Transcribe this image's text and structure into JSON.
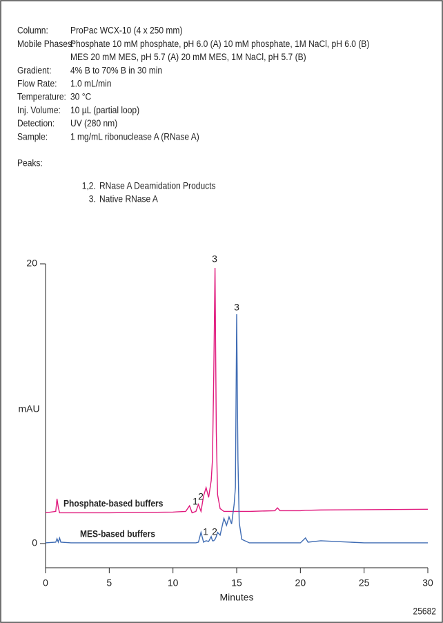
{
  "conditions": [
    {
      "label": "Column:",
      "lines": [
        "ProPac WCX-10 (4 x 250 mm)"
      ]
    },
    {
      "label": "Mobile Phases:",
      "lines": [
        "Phosphate 10 mM phosphate, pH 6.0 (A) 10 mM phosphate, 1M NaCl, pH 6.0 (B)",
        "MES 20 mM MES, pH 5.7 (A) 20 mM MES, 1M NaCl, pH 5.7 (B)"
      ]
    },
    {
      "label": "Gradient:",
      "lines": [
        "4% B to 70% B in 30 min"
      ]
    },
    {
      "label": "Flow Rate:",
      "lines": [
        "1.0 mL/min"
      ]
    },
    {
      "label": "Temperature:",
      "lines": [
        "30 °C"
      ]
    },
    {
      "label": "Inj. Volume:",
      "lines": [
        "10 µL (partial loop)"
      ]
    },
    {
      "label": "Detection:",
      "lines": [
        "UV (280 nm)"
      ]
    },
    {
      "label": "Sample:",
      "lines": [
        "1 mg/mL ribonuclease A (RNase A)"
      ]
    }
  ],
  "peaks_label": "Peaks:",
  "peaks": [
    {
      "number": "1,2.",
      "name": "RNase A Deamidation Products"
    },
    {
      "number": "3.",
      "name": "Native RNase A"
    }
  ],
  "figure_number": "25682",
  "chart_data": {
    "type": "line",
    "x_label": "Minutes",
    "y_label": "mAU",
    "xlim": [
      0,
      30
    ],
    "ylim": [
      -1.73,
      20
    ],
    "xticks": [
      0,
      5,
      10,
      15,
      20,
      25,
      30
    ],
    "yticks": [
      0,
      20
    ],
    "x": [
      0,
      0.8,
      0.9,
      1.0,
      1.1,
      1.2,
      2,
      5,
      10,
      11,
      11.3,
      11.5,
      11.8,
      12.0,
      12.2,
      12.4,
      12.6,
      12.8,
      13.0,
      13.1,
      13.2,
      13.3,
      13.4,
      13.5,
      13.7,
      14.0,
      14.2,
      14.4,
      14.6,
      14.8,
      14.9,
      15.0,
      15.1,
      15.2,
      15.4,
      16,
      18,
      18.2,
      18.4,
      20,
      20.4,
      20.6,
      21.6,
      25,
      30
    ],
    "series": [
      {
        "name": "Phosphate-based buffers",
        "color": "#e0197d",
        "values": [
          2.2,
          2.3,
          3.2,
          2.6,
          2.2,
          2.2,
          2.2,
          2.2,
          2.25,
          2.3,
          2.7,
          2.2,
          2.3,
          2.8,
          2.3,
          3.4,
          4.0,
          3.3,
          4.5,
          6,
          12,
          19.7,
          8,
          3.5,
          2.5,
          2.3,
          2.3,
          2.3,
          2.3,
          2.3,
          2.3,
          2.3,
          2.3,
          2.3,
          2.3,
          2.3,
          2.35,
          2.55,
          2.35,
          2.35,
          2.38,
          2.38,
          2.4,
          2.42,
          2.45
        ]
      },
      {
        "name": "MES-based buffers",
        "color": "#3e6bb3",
        "values": [
          0.05,
          0.1,
          0.35,
          0.1,
          0.4,
          0.1,
          0.05,
          0.05,
          0.05,
          0.05,
          0.05,
          0.05,
          0.05,
          0.1,
          0.8,
          0.1,
          0.2,
          0.15,
          0.5,
          0.2,
          0.2,
          0.3,
          0.5,
          0.8,
          0.6,
          1.8,
          1.3,
          1.9,
          1.4,
          2.8,
          4,
          16.4,
          6,
          1.5,
          0.3,
          0.05,
          0.05,
          0.05,
          0.05,
          0.05,
          0.4,
          0.1,
          0.2,
          0.05,
          0.05
        ]
      }
    ],
    "annotations": [
      "3",
      "1",
      "2",
      "3",
      "1",
      "2"
    ]
  }
}
